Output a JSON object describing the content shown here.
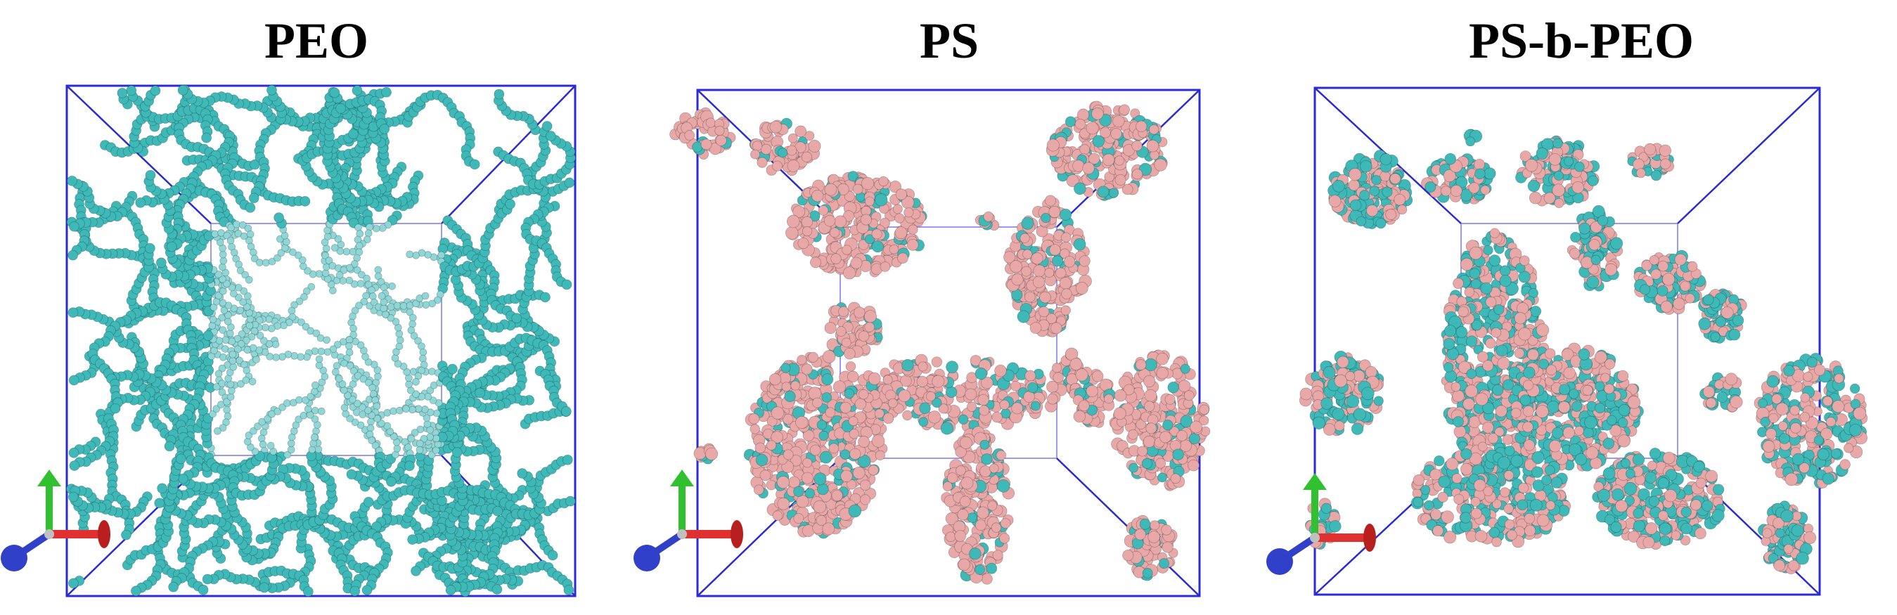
{
  "figure": {
    "panels": [
      {
        "id": "peo",
        "title": "PEO",
        "composition": "peo"
      },
      {
        "id": "ps",
        "title": "PS",
        "composition": "ps"
      },
      {
        "id": "psbpeo",
        "title": "PS-b-PEO",
        "composition": "mixed"
      }
    ],
    "colors": {
      "box_edge": "#2b2bd6",
      "inner_edge": "#9a9af0",
      "peo_bead": "#3fb8b8",
      "ps_bead": "#e8a8a8",
      "axis_y": "#30c030",
      "axis_x": "#e03030",
      "axis_z": "#3040c8"
    },
    "icons": [
      "xyz-axes-icon"
    ]
  }
}
